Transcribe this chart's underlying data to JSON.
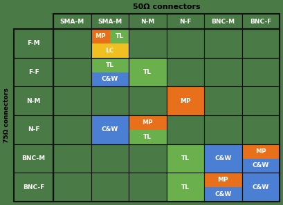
{
  "title": "50Ω connectors",
  "ylabel": "75Ω connectors",
  "col_headers": [
    "SMA-M",
    "SMA-M",
    "N-M",
    "N-F",
    "BNC-M",
    "BNC-F"
  ],
  "row_headers": [
    "F-M",
    "F-F",
    "N-M",
    "N-F",
    "BNC-M",
    "BNC-F"
  ],
  "fig_bg": "#4a7a45",
  "cell_bg": "#4a7a45",
  "grid_color": "#111111",
  "cell_colors": {
    "MP": "#e8701a",
    "TL": "#6ab04c",
    "LC": "#f0c020",
    "C&W": "#4a7fd4"
  },
  "cells": [
    {
      "row": 0,
      "col": 1,
      "items": [
        {
          "text": "MP",
          "color": "MP",
          "pos": "top-left"
        },
        {
          "text": "TL",
          "color": "TL",
          "pos": "top-right"
        },
        {
          "text": "LC",
          "color": "LC",
          "pos": "bottom"
        }
      ]
    },
    {
      "row": 1,
      "col": 1,
      "items": [
        {
          "text": "TL",
          "color": "TL",
          "pos": "top"
        },
        {
          "text": "C&W",
          "color": "C&W",
          "pos": "bottom"
        }
      ]
    },
    {
      "row": 1,
      "col": 2,
      "items": [
        {
          "text": "TL",
          "color": "TL",
          "pos": "full"
        }
      ]
    },
    {
      "row": 2,
      "col": 3,
      "items": [
        {
          "text": "MP",
          "color": "MP",
          "pos": "full"
        }
      ]
    },
    {
      "row": 3,
      "col": 1,
      "items": [
        {
          "text": "C&W",
          "color": "C&W",
          "pos": "full"
        }
      ]
    },
    {
      "row": 3,
      "col": 2,
      "items": [
        {
          "text": "MP",
          "color": "MP",
          "pos": "top"
        },
        {
          "text": "TL",
          "color": "TL",
          "pos": "bottom"
        }
      ]
    },
    {
      "row": 4,
      "col": 3,
      "items": [
        {
          "text": "TL",
          "color": "TL",
          "pos": "full"
        }
      ]
    },
    {
      "row": 4,
      "col": 4,
      "items": [
        {
          "text": "C&W",
          "color": "C&W",
          "pos": "full"
        }
      ]
    },
    {
      "row": 4,
      "col": 5,
      "items": [
        {
          "text": "MP",
          "color": "MP",
          "pos": "top"
        },
        {
          "text": "C&W",
          "color": "C&W",
          "pos": "bottom"
        }
      ]
    },
    {
      "row": 5,
      "col": 3,
      "items": [
        {
          "text": "TL",
          "color": "TL",
          "pos": "full"
        }
      ]
    },
    {
      "row": 5,
      "col": 4,
      "items": [
        {
          "text": "MP",
          "color": "MP",
          "pos": "top"
        },
        {
          "text": "C&W",
          "color": "C&W",
          "pos": "bottom"
        }
      ]
    },
    {
      "row": 5,
      "col": 5,
      "items": [
        {
          "text": "C&W",
          "color": "C&W",
          "pos": "full"
        }
      ]
    }
  ],
  "text_color": "#ffffff",
  "figsize": [
    4.09,
    2.97
  ],
  "dpi": 100
}
